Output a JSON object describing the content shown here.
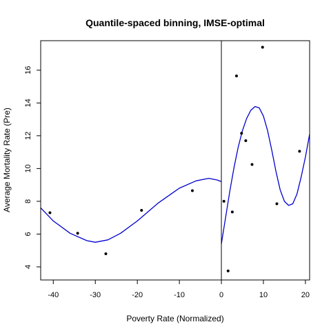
{
  "chart_data": {
    "type": "scatter",
    "title": "Quantile-spaced binning, IMSE-optimal",
    "xlabel": "Poverty Rate (Normalized)",
    "ylabel": "Average Mortality Rate (Pre)",
    "xlim": [
      -43,
      21
    ],
    "ylim": [
      3.2,
      17.8
    ],
    "x_ticks": [
      -40,
      -30,
      -20,
      -10,
      0,
      10,
      20
    ],
    "y_ticks": [
      4,
      6,
      8,
      10,
      12,
      14,
      16
    ],
    "cutoff": 0,
    "colors": {
      "points": "#000000",
      "fit": "#0000CD",
      "axes": "#000000"
    },
    "points": [
      {
        "x": -40.8,
        "y": 7.3
      },
      {
        "x": -34.2,
        "y": 6.05
      },
      {
        "x": -27.5,
        "y": 4.8
      },
      {
        "x": -19.0,
        "y": 7.45
      },
      {
        "x": -6.9,
        "y": 8.65
      },
      {
        "x": 0.6,
        "y": 8.0
      },
      {
        "x": 1.6,
        "y": 3.75
      },
      {
        "x": 2.6,
        "y": 7.35
      },
      {
        "x": 3.6,
        "y": 15.65
      },
      {
        "x": 4.8,
        "y": 12.15
      },
      {
        "x": 5.8,
        "y": 11.7
      },
      {
        "x": 7.3,
        "y": 10.25
      },
      {
        "x": 9.8,
        "y": 17.4
      },
      {
        "x": 13.2,
        "y": 7.85
      },
      {
        "x": 18.6,
        "y": 11.05
      }
    ],
    "fit_left": [
      {
        "x": -43,
        "y": 7.6
      },
      {
        "x": -40,
        "y": 6.8
      },
      {
        "x": -36,
        "y": 6.05
      },
      {
        "x": -32,
        "y": 5.6
      },
      {
        "x": -30,
        "y": 5.5
      },
      {
        "x": -27,
        "y": 5.65
      },
      {
        "x": -24,
        "y": 6.05
      },
      {
        "x": -20,
        "y": 6.8
      },
      {
        "x": -15,
        "y": 7.9
      },
      {
        "x": -10,
        "y": 8.8
      },
      {
        "x": -6,
        "y": 9.25
      },
      {
        "x": -3,
        "y": 9.4
      },
      {
        "x": -1,
        "y": 9.3
      },
      {
        "x": 0,
        "y": 9.2
      }
    ],
    "fit_right": [
      {
        "x": 0,
        "y": 5.4
      },
      {
        "x": 1,
        "y": 7.0
      },
      {
        "x": 2,
        "y": 8.6
      },
      {
        "x": 3,
        "y": 10.05
      },
      {
        "x": 4,
        "y": 11.3
      },
      {
        "x": 5,
        "y": 12.3
      },
      {
        "x": 6,
        "y": 13.05
      },
      {
        "x": 7,
        "y": 13.55
      },
      {
        "x": 8,
        "y": 13.78
      },
      {
        "x": 9,
        "y": 13.7
      },
      {
        "x": 10,
        "y": 13.2
      },
      {
        "x": 11,
        "y": 12.3
      },
      {
        "x": 12,
        "y": 11.1
      },
      {
        "x": 13,
        "y": 9.8
      },
      {
        "x": 14,
        "y": 8.7
      },
      {
        "x": 15,
        "y": 8.0
      },
      {
        "x": 16,
        "y": 7.75
      },
      {
        "x": 17,
        "y": 7.85
      },
      {
        "x": 18,
        "y": 8.45
      },
      {
        "x": 19,
        "y": 9.5
      },
      {
        "x": 20,
        "y": 10.7
      },
      {
        "x": 21,
        "y": 12.1
      }
    ]
  }
}
